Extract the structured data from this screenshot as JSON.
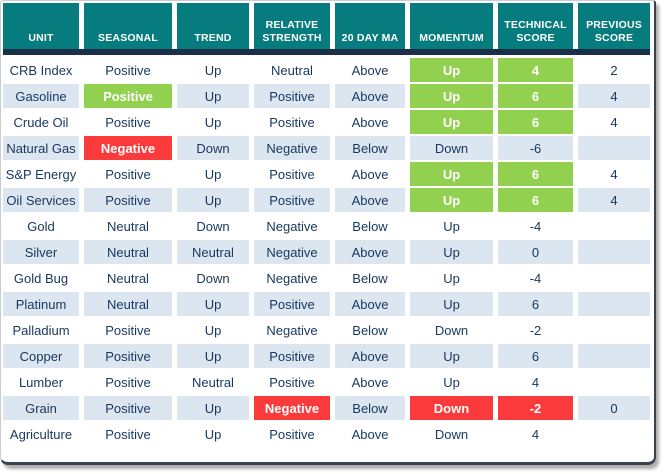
{
  "colors": {
    "teal": "#077c7e",
    "navy": "#1b3048",
    "text": "#17375d",
    "altrow": "#dce6f1",
    "green": "#92d050",
    "red": "#fb3b3b"
  },
  "table": {
    "columns": [
      {
        "label": "UNIT"
      },
      {
        "label": "SEASONAL"
      },
      {
        "label": "TREND"
      },
      {
        "label": "RELATIVE STRENGTH"
      },
      {
        "label": "20 DAY MA"
      },
      {
        "label": "MOMENTUM"
      },
      {
        "label": "TECHNICAL SCORE"
      },
      {
        "label": "PREVIOUS SCORE"
      }
    ],
    "rows": [
      {
        "cells": [
          {
            "t": "CRB Index",
            "s": ""
          },
          {
            "t": "Positive",
            "s": ""
          },
          {
            "t": "Up",
            "s": ""
          },
          {
            "t": "Neutral",
            "s": ""
          },
          {
            "t": "Above",
            "s": ""
          },
          {
            "t": "Up",
            "s": "g"
          },
          {
            "t": "4",
            "s": "g"
          },
          {
            "t": "2",
            "s": ""
          }
        ]
      },
      {
        "cells": [
          {
            "t": "Gasoline",
            "s": ""
          },
          {
            "t": "Positive",
            "s": "g"
          },
          {
            "t": "Up",
            "s": ""
          },
          {
            "t": "Positive",
            "s": ""
          },
          {
            "t": "Above",
            "s": ""
          },
          {
            "t": "Up",
            "s": "g"
          },
          {
            "t": "6",
            "s": "g"
          },
          {
            "t": "4",
            "s": ""
          }
        ]
      },
      {
        "cells": [
          {
            "t": "Crude Oil",
            "s": ""
          },
          {
            "t": "Positive",
            "s": ""
          },
          {
            "t": "Up",
            "s": ""
          },
          {
            "t": "Positive",
            "s": ""
          },
          {
            "t": "Above",
            "s": ""
          },
          {
            "t": "Up",
            "s": "g"
          },
          {
            "t": "6",
            "s": "g"
          },
          {
            "t": "4",
            "s": ""
          }
        ]
      },
      {
        "cells": [
          {
            "t": "Natural Gas",
            "s": ""
          },
          {
            "t": "Negative",
            "s": "r"
          },
          {
            "t": "Down",
            "s": ""
          },
          {
            "t": "Negative",
            "s": ""
          },
          {
            "t": "Below",
            "s": ""
          },
          {
            "t": "Down",
            "s": ""
          },
          {
            "t": "-6",
            "s": ""
          },
          {
            "t": "",
            "s": ""
          }
        ]
      },
      {
        "cells": [
          {
            "t": "S&P Energy",
            "s": ""
          },
          {
            "t": "Positive",
            "s": ""
          },
          {
            "t": "Up",
            "s": ""
          },
          {
            "t": "Positive",
            "s": ""
          },
          {
            "t": "Above",
            "s": ""
          },
          {
            "t": "Up",
            "s": "g"
          },
          {
            "t": "6",
            "s": "g"
          },
          {
            "t": "4",
            "s": ""
          }
        ]
      },
      {
        "cells": [
          {
            "t": "Oil Services",
            "s": ""
          },
          {
            "t": "Positive",
            "s": ""
          },
          {
            "t": "Up",
            "s": ""
          },
          {
            "t": "Positive",
            "s": ""
          },
          {
            "t": "Above",
            "s": ""
          },
          {
            "t": "Up",
            "s": "g"
          },
          {
            "t": "6",
            "s": "g"
          },
          {
            "t": "4",
            "s": ""
          }
        ]
      },
      {
        "cells": [
          {
            "t": "Gold",
            "s": ""
          },
          {
            "t": "Neutral",
            "s": ""
          },
          {
            "t": "Down",
            "s": ""
          },
          {
            "t": "Negative",
            "s": ""
          },
          {
            "t": "Below",
            "s": ""
          },
          {
            "t": "Up",
            "s": ""
          },
          {
            "t": "-4",
            "s": ""
          },
          {
            "t": "",
            "s": ""
          }
        ]
      },
      {
        "cells": [
          {
            "t": "Silver",
            "s": ""
          },
          {
            "t": "Neutral",
            "s": ""
          },
          {
            "t": "Neutral",
            "s": ""
          },
          {
            "t": "Negative",
            "s": ""
          },
          {
            "t": "Above",
            "s": ""
          },
          {
            "t": "Up",
            "s": ""
          },
          {
            "t": "0",
            "s": ""
          },
          {
            "t": "",
            "s": ""
          }
        ]
      },
      {
        "cells": [
          {
            "t": "Gold Bug",
            "s": ""
          },
          {
            "t": "Neutral",
            "s": ""
          },
          {
            "t": "Down",
            "s": ""
          },
          {
            "t": "Negative",
            "s": ""
          },
          {
            "t": "Below",
            "s": ""
          },
          {
            "t": "Up",
            "s": ""
          },
          {
            "t": "-4",
            "s": ""
          },
          {
            "t": "",
            "s": ""
          }
        ]
      },
      {
        "cells": [
          {
            "t": "Platinum",
            "s": ""
          },
          {
            "t": "Neutral",
            "s": ""
          },
          {
            "t": "Up",
            "s": ""
          },
          {
            "t": "Positive",
            "s": ""
          },
          {
            "t": "Above",
            "s": ""
          },
          {
            "t": "Up",
            "s": ""
          },
          {
            "t": "6",
            "s": ""
          },
          {
            "t": "",
            "s": ""
          }
        ]
      },
      {
        "cells": [
          {
            "t": "Palladium",
            "s": ""
          },
          {
            "t": "Positive",
            "s": ""
          },
          {
            "t": "Up",
            "s": ""
          },
          {
            "t": "Negative",
            "s": ""
          },
          {
            "t": "Below",
            "s": ""
          },
          {
            "t": "Down",
            "s": ""
          },
          {
            "t": "-2",
            "s": ""
          },
          {
            "t": "",
            "s": ""
          }
        ]
      },
      {
        "cells": [
          {
            "t": "Copper",
            "s": ""
          },
          {
            "t": "Positive",
            "s": ""
          },
          {
            "t": "Up",
            "s": ""
          },
          {
            "t": "Positive",
            "s": ""
          },
          {
            "t": "Above",
            "s": ""
          },
          {
            "t": "Up",
            "s": ""
          },
          {
            "t": "6",
            "s": ""
          },
          {
            "t": "",
            "s": ""
          }
        ]
      },
      {
        "cells": [
          {
            "t": "Lumber",
            "s": ""
          },
          {
            "t": "Positive",
            "s": ""
          },
          {
            "t": "Neutral",
            "s": ""
          },
          {
            "t": "Positive",
            "s": ""
          },
          {
            "t": "Above",
            "s": ""
          },
          {
            "t": "Up",
            "s": ""
          },
          {
            "t": "4",
            "s": ""
          },
          {
            "t": "",
            "s": ""
          }
        ]
      },
      {
        "cells": [
          {
            "t": "Grain",
            "s": ""
          },
          {
            "t": "Positive",
            "s": ""
          },
          {
            "t": "Up",
            "s": ""
          },
          {
            "t": "Negative",
            "s": "r"
          },
          {
            "t": "Below",
            "s": ""
          },
          {
            "t": "Down",
            "s": "r"
          },
          {
            "t": "-2",
            "s": "r"
          },
          {
            "t": "0",
            "s": ""
          }
        ]
      },
      {
        "cells": [
          {
            "t": "Agriculture",
            "s": ""
          },
          {
            "t": "Positive",
            "s": ""
          },
          {
            "t": "Up",
            "s": ""
          },
          {
            "t": "Positive",
            "s": ""
          },
          {
            "t": "Above",
            "s": ""
          },
          {
            "t": "Down",
            "s": ""
          },
          {
            "t": "4",
            "s": ""
          },
          {
            "t": "",
            "s": ""
          }
        ]
      }
    ]
  }
}
